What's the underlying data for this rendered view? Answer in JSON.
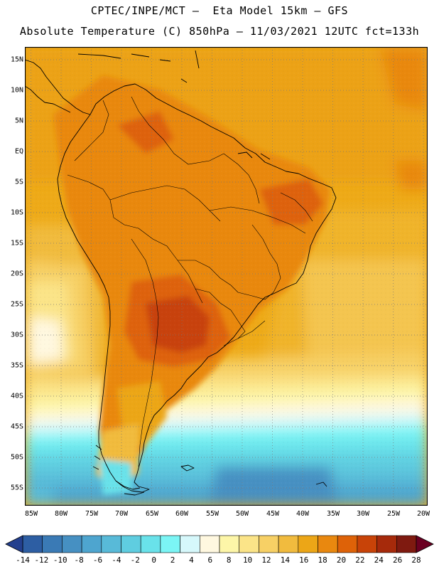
{
  "header": {
    "line1": "CPTEC/INPE/MCT –  Eta Model 15km – GFS",
    "line2": "Absolute Temperature (C) 850hPa – 11/03/2021 12UTC fct=133h"
  },
  "map": {
    "lat_labels": [
      "15N",
      "10N",
      "5N",
      "EQ",
      "5S",
      "10S",
      "15S",
      "20S",
      "25S",
      "30S",
      "35S",
      "40S",
      "45S",
      "50S",
      "55S"
    ],
    "lon_labels": [
      "85W",
      "80W",
      "75W",
      "70W",
      "65W",
      "60W",
      "55W",
      "50W",
      "45W",
      "40W",
      "35W",
      "30W",
      "25W",
      "20W"
    ],
    "lat_range": [
      -58,
      17.5
    ],
    "lon_range": [
      -86,
      -19.5
    ]
  },
  "colorbar": {
    "labels": [
      "-14",
      "-12",
      "-10",
      "-8",
      "-6",
      "-4",
      "-2",
      "0",
      "2",
      "4",
      "6",
      "8",
      "10",
      "12",
      "14",
      "16",
      "18",
      "20",
      "22",
      "24",
      "26",
      "28"
    ],
    "colors": [
      "#233f8e",
      "#2d5ea3",
      "#3a7ab5",
      "#4690c2",
      "#4ea5cf",
      "#58bad8",
      "#5fcde0",
      "#69e2ea",
      "#7bf5f5",
      "#d6f8fb",
      "#fff8e0",
      "#fdf6a8",
      "#fbe488",
      "#f7d065",
      "#f1bb3e",
      "#eca617",
      "#e9880f",
      "#de6208",
      "#c84308",
      "#a62a0b",
      "#7f1a10",
      "#6b0022"
    ]
  }
}
